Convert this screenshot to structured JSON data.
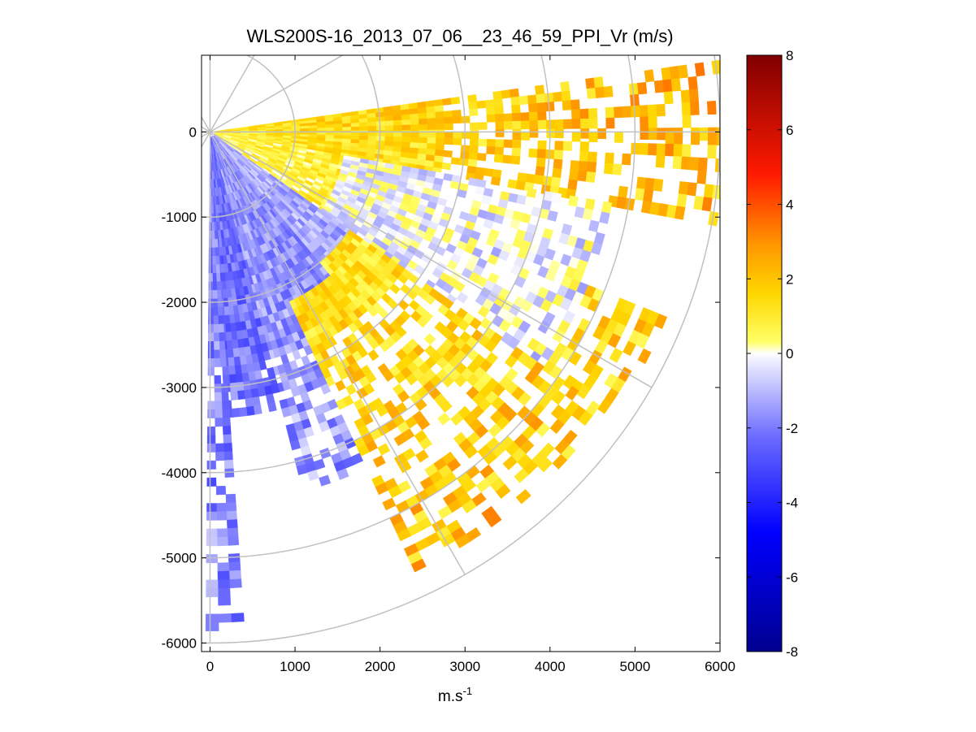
{
  "chart_data": {
    "type": "heatmap",
    "projection": "polar-ppi",
    "title": "WLS200S-16_2013_07_06__23_46_59_PPI_Vr (m/s)",
    "xlabel": "m.s",
    "xlabel_sup": "-1",
    "ylabel": "",
    "xlim": [
      -100,
      6000
    ],
    "ylim": [
      -6100,
      900
    ],
    "xticks": [
      0,
      1000,
      2000,
      3000,
      4000,
      5000,
      6000
    ],
    "yticks": [
      0,
      -1000,
      -2000,
      -3000,
      -4000,
      -5000,
      -6000
    ],
    "grid": true,
    "polar_grid": {
      "range_rings": [
        1000,
        2000,
        3000,
        4000,
        5000,
        6000
      ],
      "spokes_deg": [
        0,
        30,
        60,
        90,
        120,
        150,
        180,
        210,
        240,
        270,
        300,
        330
      ]
    },
    "colorbar": {
      "range": [
        -8,
        8
      ],
      "ticks": [
        8,
        6,
        4,
        2,
        0,
        -2,
        -4,
        -6,
        -8
      ],
      "colormap": "blue-white-yellow-red",
      "colors": [
        "#00008f",
        "#0000ff",
        "#7f7fff",
        "#ffffff",
        "#ffff00",
        "#ff7f00",
        "#ff0000",
        "#800000"
      ]
    },
    "sectors": [
      {
        "az_start": 82,
        "az_end": 90,
        "r_start": 0,
        "r_end": 6000,
        "value": 1.2
      },
      {
        "az_start": 90,
        "az_end": 100,
        "r_start": 0,
        "r_end": 6000,
        "value": 1.0
      },
      {
        "az_start": 100,
        "az_end": 112,
        "r_start": 0,
        "r_end": 2200,
        "value": 0.6
      },
      {
        "az_start": 112,
        "az_end": 125,
        "r_start": 0,
        "r_end": 1600,
        "value": 0.5
      },
      {
        "az_start": 100,
        "az_end": 125,
        "r_start": 1600,
        "r_end": 4800,
        "value": -0.3
      },
      {
        "az_start": 112,
        "az_end": 125,
        "r_start": 4800,
        "r_end": 5800,
        "value": 0.5
      },
      {
        "az_start": 125,
        "az_end": 140,
        "r_start": 0,
        "r_end": 2000,
        "value": -1.2
      },
      {
        "az_start": 125,
        "az_end": 140,
        "r_start": 2000,
        "r_end": 5700,
        "value": 0.8
      },
      {
        "az_start": 140,
        "az_end": 155,
        "r_start": 0,
        "r_end": 2200,
        "value": -1.6
      },
      {
        "az_start": 140,
        "az_end": 155,
        "r_start": 2200,
        "r_end": 5700,
        "value": 0.9
      },
      {
        "az_start": 155,
        "az_end": 165,
        "r_start": 0,
        "r_end": 4300,
        "value": -1.5
      },
      {
        "az_start": 165,
        "az_end": 176,
        "r_start": 0,
        "r_end": 3300,
        "value": -2.2
      },
      {
        "az_start": 176,
        "az_end": 180,
        "r_start": 0,
        "r_end": 5900,
        "value": -1.9
      }
    ]
  }
}
